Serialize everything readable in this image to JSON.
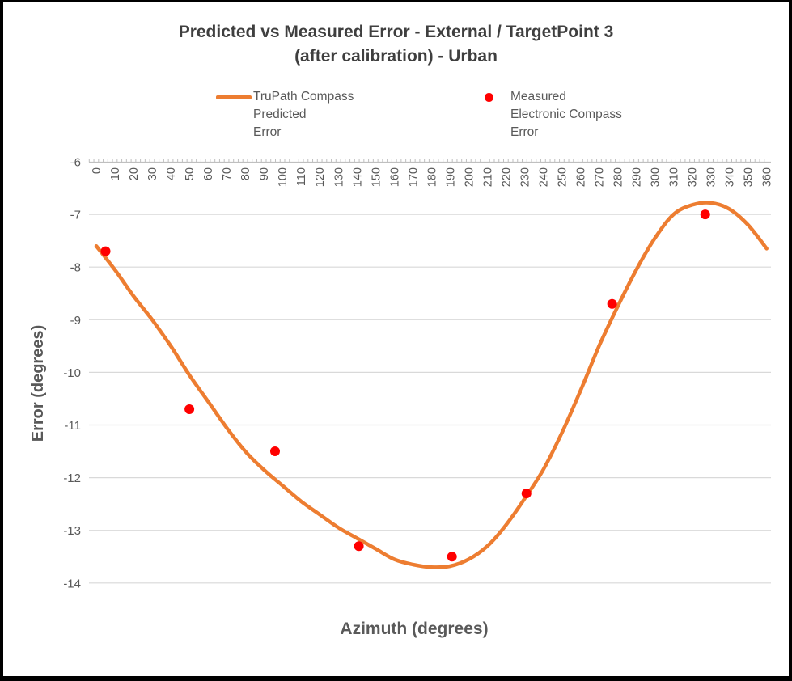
{
  "title": {
    "line1": "Predicted vs Measured Error - External / TargetPoint 3",
    "line2": "(after calibration) - Urban"
  },
  "legend": {
    "predicted_label": "TruPath Compass\nPredicted\nError",
    "measured_label": "Measured\nElectronic Compass\nError"
  },
  "axes": {
    "x_title": "Azimuth (degrees)",
    "y_title": "Error (degrees)"
  },
  "colors": {
    "predicted_line": "#ED7D31",
    "measured_point": "#FF0000",
    "gridline": "#D9D9D9",
    "axis_line": "#BFBFBF",
    "tick_text": "#595959",
    "title_text": "#3F3F3F"
  },
  "chart_data": {
    "type": "line",
    "title": "Predicted vs Measured Error - External / TargetPoint 3 (after calibration) - Urban",
    "xlabel": "Azimuth (degrees)",
    "ylabel": "Error (degrees)",
    "xlim": [
      0,
      360
    ],
    "ylim": [
      -14,
      -6
    ],
    "x_tick_step": 10,
    "x_minor_tick_step": 2.5,
    "y_tick_step": 1,
    "grid": "horizontal",
    "legend_position": "top",
    "series": [
      {
        "name": "TruPath Compass Predicted Error",
        "type": "line",
        "color": "#ED7D31",
        "x": [
          0,
          10,
          20,
          30,
          40,
          50,
          60,
          70,
          80,
          90,
          100,
          110,
          120,
          130,
          140,
          150,
          160,
          170,
          180,
          190,
          200,
          210,
          220,
          230,
          240,
          250,
          260,
          270,
          280,
          290,
          300,
          310,
          320,
          330,
          340,
          350,
          360
        ],
        "y": [
          -7.6,
          -8.05,
          -8.55,
          -9.0,
          -9.5,
          -10.05,
          -10.55,
          -11.05,
          -11.5,
          -11.85,
          -12.15,
          -12.45,
          -12.7,
          -12.95,
          -13.15,
          -13.35,
          -13.55,
          -13.65,
          -13.7,
          -13.68,
          -13.55,
          -13.3,
          -12.9,
          -12.4,
          -11.85,
          -11.15,
          -10.35,
          -9.5,
          -8.75,
          -8.05,
          -7.45,
          -7.0,
          -6.82,
          -6.78,
          -6.9,
          -7.2,
          -7.65
        ]
      },
      {
        "name": "Measured Electronic Compass Error",
        "type": "scatter",
        "color": "#FF0000",
        "x": [
          5,
          50,
          96,
          141,
          191,
          231,
          277,
          327
        ],
        "y": [
          -7.7,
          -10.7,
          -11.5,
          -13.3,
          -13.5,
          -12.3,
          -8.7,
          -7.0
        ]
      }
    ]
  }
}
